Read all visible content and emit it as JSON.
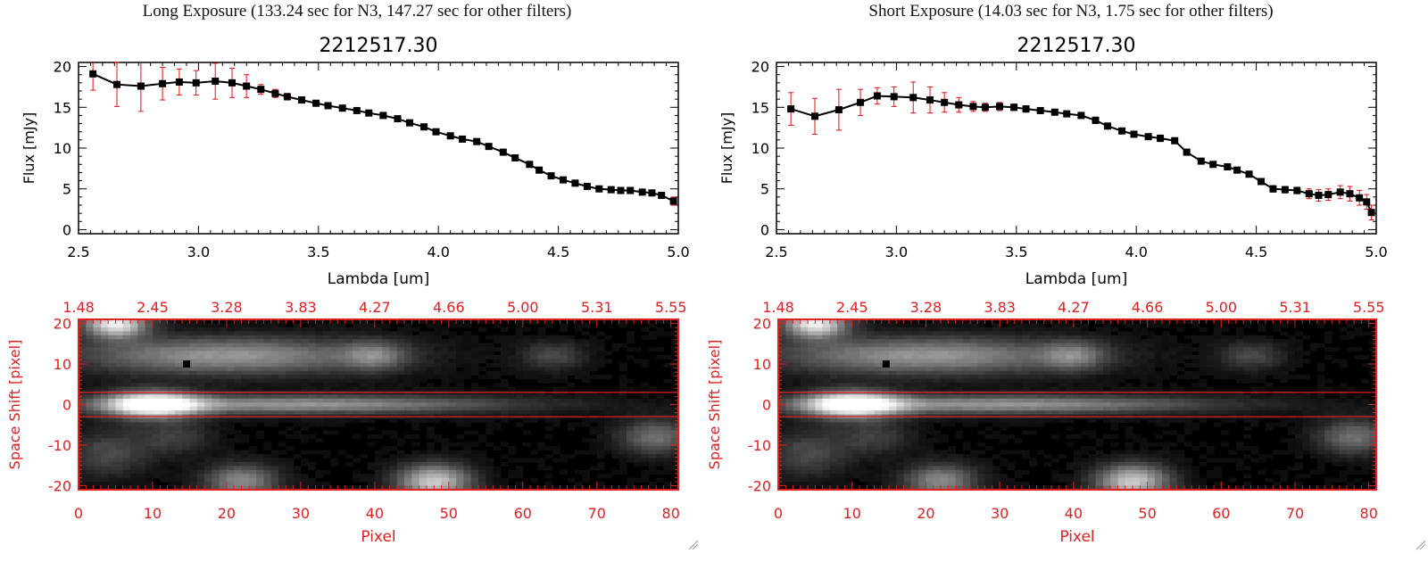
{
  "panels": [
    {
      "header": "Long Exposure (133.24 sec for N3, 147.27 sec for other filters)",
      "spectrum": {
        "title": "2212517.30",
        "xlabel": "Lambda [um]",
        "ylabel": "Flux [mJy]",
        "xticks": [
          "2.5",
          "3.0",
          "3.5",
          "4.0",
          "4.5",
          "5.0"
        ],
        "yticks": [
          "0",
          "5",
          "10",
          "15",
          "20"
        ]
      },
      "image": {
        "top_ticks": [
          "1.48",
          "2.45",
          "3.28",
          "3.83",
          "4.27",
          "4.66",
          "5.00",
          "5.31",
          "5.55"
        ],
        "xticks": [
          "0",
          "10",
          "20",
          "30",
          "40",
          "50",
          "60",
          "70",
          "80"
        ],
        "yticks": [
          "20",
          "10",
          "0",
          "-10",
          "-20"
        ],
        "xlabel": "Pixel",
        "ylabel": "Space Shift [pixel]"
      }
    },
    {
      "header": "Short Exposure (14.03 sec for N3, 1.75 sec for other filters)",
      "spectrum": {
        "title": "2212517.30",
        "xlabel": "Lambda [um]",
        "ylabel": "Flux [mJy]",
        "xticks": [
          "2.5",
          "3.0",
          "3.5",
          "4.0",
          "4.5",
          "5.0"
        ],
        "yticks": [
          "0",
          "5",
          "10",
          "15",
          "20"
        ]
      },
      "image": {
        "top_ticks": [
          "1.48",
          "2.45",
          "3.28",
          "3.83",
          "4.27",
          "4.66",
          "5.00",
          "5.31",
          "5.55"
        ],
        "xticks": [
          "0",
          "10",
          "20",
          "30",
          "40",
          "50",
          "60",
          "70",
          "80"
        ],
        "yticks": [
          "20",
          "10",
          "0",
          "-10",
          "-20"
        ],
        "xlabel": "Pixel",
        "ylabel": "Space Shift [pixel]"
      }
    }
  ],
  "colors": {
    "axis": "#000000",
    "error": "#e01010",
    "image_axis": "#e02020",
    "line": "#000000"
  },
  "chart_data": [
    {
      "type": "line",
      "title": "2212517.30",
      "xlabel": "Lambda [um]",
      "ylabel": "Flux [mJy]",
      "xlim": [
        2.5,
        5.0
      ],
      "ylim": [
        -0.5,
        20.5
      ],
      "series": [
        {
          "x": [
            2.56,
            2.66,
            2.76,
            2.85,
            2.92,
            2.99,
            3.07,
            3.14,
            3.2,
            3.26,
            3.32,
            3.37,
            3.43,
            3.49,
            3.54,
            3.6,
            3.66,
            3.71,
            3.77,
            3.83,
            3.88,
            3.94,
            3.99,
            4.05,
            4.1,
            4.16,
            4.21,
            4.27,
            4.32,
            4.38,
            4.42,
            4.47,
            4.52,
            4.57,
            4.62,
            4.67,
            4.72,
            4.76,
            4.8,
            4.85,
            4.89,
            4.93,
            4.98
          ],
          "y": [
            19.1,
            17.8,
            17.6,
            17.9,
            18.1,
            18.0,
            18.2,
            18.0,
            17.6,
            17.2,
            16.7,
            16.3,
            15.9,
            15.5,
            15.2,
            14.9,
            14.6,
            14.3,
            14.0,
            13.6,
            13.1,
            12.6,
            12.0,
            11.5,
            11.1,
            10.8,
            10.2,
            9.5,
            8.8,
            8.0,
            7.3,
            6.6,
            6.1,
            5.7,
            5.3,
            5.0,
            4.9,
            4.8,
            4.8,
            4.6,
            4.5,
            4.2,
            3.5
          ],
          "err": [
            2.0,
            2.7,
            3.1,
            2.0,
            1.6,
            1.5,
            2.2,
            1.8,
            1.4,
            0.6,
            0.5,
            0.4,
            0.3,
            0.3,
            0.3,
            0.3,
            0.3,
            0.3,
            0.3,
            0.3,
            0.3,
            0.3,
            0.3,
            0.3,
            0.3,
            0.3,
            0.3,
            0.3,
            0.3,
            0.3,
            0.3,
            0.3,
            0.3,
            0.3,
            0.3,
            0.3,
            0.3,
            0.3,
            0.3,
            0.3,
            0.3,
            0.3,
            0.5
          ]
        }
      ]
    },
    {
      "type": "line",
      "title": "2212517.30",
      "xlabel": "Lambda [um]",
      "ylabel": "Flux [mJy]",
      "xlim": [
        2.5,
        5.0
      ],
      "ylim": [
        -0.5,
        20.5
      ],
      "series": [
        {
          "x": [
            2.56,
            2.66,
            2.76,
            2.85,
            2.92,
            2.99,
            3.07,
            3.14,
            3.2,
            3.26,
            3.32,
            3.37,
            3.43,
            3.49,
            3.54,
            3.6,
            3.66,
            3.71,
            3.77,
            3.83,
            3.88,
            3.94,
            3.99,
            4.05,
            4.1,
            4.16,
            4.21,
            4.27,
            4.32,
            4.38,
            4.42,
            4.47,
            4.52,
            4.57,
            4.62,
            4.67,
            4.72,
            4.76,
            4.8,
            4.85,
            4.89,
            4.93,
            4.96,
            4.98
          ],
          "y": [
            14.8,
            13.9,
            14.7,
            15.6,
            16.4,
            16.3,
            16.2,
            15.9,
            15.6,
            15.3,
            15.1,
            15.0,
            15.1,
            15.0,
            14.8,
            14.6,
            14.4,
            14.2,
            14.0,
            13.4,
            12.7,
            12.1,
            11.7,
            11.4,
            11.2,
            10.9,
            9.5,
            8.4,
            8.0,
            7.7,
            7.3,
            6.8,
            5.9,
            5.0,
            4.9,
            4.8,
            4.4,
            4.2,
            4.3,
            4.6,
            4.4,
            3.9,
            3.4,
            2.1
          ],
          "err": [
            2.0,
            2.2,
            2.5,
            1.6,
            1.0,
            1.2,
            1.9,
            1.6,
            1.2,
            0.9,
            0.6,
            0.5,
            0.5,
            0.4,
            0.4,
            0.3,
            0.3,
            0.3,
            0.3,
            0.4,
            0.3,
            0.3,
            0.3,
            0.3,
            0.4,
            0.3,
            0.3,
            0.3,
            0.3,
            0.3,
            0.3,
            0.3,
            0.3,
            0.4,
            0.4,
            0.4,
            0.6,
            0.7,
            0.7,
            0.8,
            0.9,
            0.9,
            0.9,
            0.9
          ]
        }
      ]
    },
    {
      "type": "heatmap",
      "xlabel": "Pixel",
      "ylabel": "Space Shift [pixel]",
      "xlim": [
        0,
        81
      ],
      "ylim": [
        -21,
        21
      ],
      "extraction_rows": [
        -3,
        3
      ],
      "blobs": [
        {
          "x": 10,
          "y": 0,
          "sx": 4.5,
          "sy": 2.3,
          "a": 1.0
        },
        {
          "x": 30,
          "y": 0,
          "sx": 20,
          "sy": 1.6,
          "a": 0.55
        },
        {
          "x": 20,
          "y": 12,
          "sx": 14,
          "sy": 3.2,
          "a": 0.55
        },
        {
          "x": 5,
          "y": 20,
          "sx": 3,
          "sy": 2.5,
          "a": 0.9
        },
        {
          "x": 40,
          "y": 12,
          "sx": 3,
          "sy": 2.5,
          "a": 0.35
        },
        {
          "x": 64,
          "y": 12,
          "sx": 3,
          "sy": 2.5,
          "a": 0.25
        },
        {
          "x": 78,
          "y": -8,
          "sx": 3.5,
          "sy": 3,
          "a": 0.4
        },
        {
          "x": 48,
          "y": -19,
          "sx": 3.5,
          "sy": 3,
          "a": 0.75
        },
        {
          "x": 22,
          "y": -19,
          "sx": 3.5,
          "sy": 3,
          "a": 0.5
        },
        {
          "x": 4,
          "y": -12,
          "sx": 4,
          "sy": 4,
          "a": 0.25
        },
        {
          "x": 13,
          "y": -8,
          "sx": 3.5,
          "sy": 3,
          "a": 0.2
        }
      ],
      "dark_pixel": {
        "x": 14,
        "y": 10
      }
    }
  ]
}
